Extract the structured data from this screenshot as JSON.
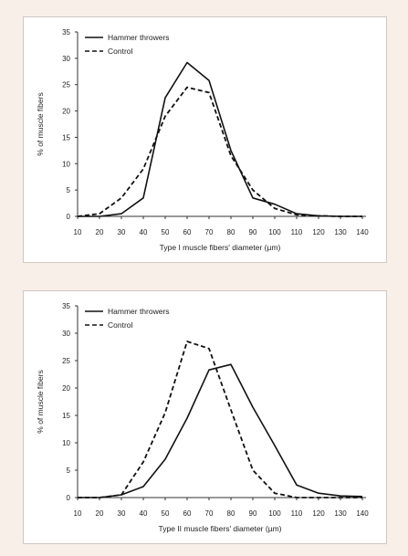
{
  "chart_data": [
    {
      "type": "line",
      "xlabel": "Type I muscle fibers' diameter (µm)",
      "ylabel": "% of muscle fibers",
      "x": [
        10,
        20,
        30,
        40,
        50,
        60,
        70,
        80,
        90,
        100,
        110,
        120,
        130,
        140
      ],
      "ylim": [
        0,
        35
      ],
      "yticks": [
        0,
        5,
        10,
        15,
        20,
        25,
        30,
        35
      ],
      "grid": false,
      "legend_position": "top-left",
      "series": [
        {
          "name": "Hammer throwers",
          "style": "solid",
          "values": [
            0,
            0,
            0.5,
            3.5,
            22.5,
            29.2,
            25.8,
            12.5,
            3.5,
            2.3,
            0.5,
            0.1,
            0,
            0
          ]
        },
        {
          "name": "Control",
          "style": "dashed",
          "values": [
            0,
            0.5,
            3.5,
            9,
            19,
            24.5,
            23.5,
            11.5,
            5,
            1.5,
            0.3,
            0.1,
            0,
            0
          ]
        }
      ]
    },
    {
      "type": "line",
      "xlabel": "Type II muscle fibers' diameter (µm)",
      "ylabel": "% of muscle fibers",
      "x": [
        10,
        20,
        30,
        40,
        50,
        60,
        70,
        80,
        90,
        100,
        110,
        120,
        130,
        140
      ],
      "ylim": [
        0,
        35
      ],
      "yticks": [
        0,
        5,
        10,
        15,
        20,
        25,
        30,
        35
      ],
      "grid": false,
      "legend_position": "top-left",
      "series": [
        {
          "name": "Hammer throwers",
          "style": "solid",
          "values": [
            0,
            0,
            0.5,
            2,
            7,
            14.5,
            23.3,
            24.3,
            16.5,
            9.5,
            2.3,
            0.8,
            0.3,
            0.2
          ]
        },
        {
          "name": "Control",
          "style": "dashed",
          "values": [
            0,
            0,
            0.5,
            6.5,
            15.5,
            28.5,
            27.2,
            16,
            5,
            0.8,
            0,
            0,
            0,
            0
          ]
        }
      ]
    }
  ]
}
